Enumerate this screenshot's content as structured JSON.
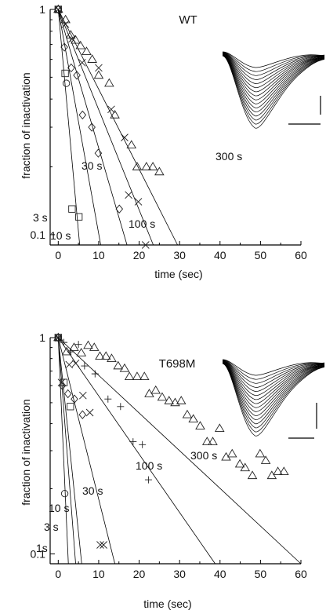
{
  "chart_data": [
    {
      "type": "scatter",
      "title": "WT",
      "xlabel": "time (sec)",
      "ylabel": "fraction of inactivation",
      "xlim": [
        -2,
        60
      ],
      "ylim": [
        0.09,
        1
      ],
      "y_scale": "log",
      "x_ticks": [
        "0",
        "10",
        "20",
        "30",
        "40",
        "50",
        "60"
      ],
      "y_ticks": [
        "1",
        "0.1"
      ],
      "inset": "current traces with scale bars",
      "series": [
        {
          "name": "3 s",
          "marker": "square",
          "x": [
            0,
            1.7,
            3.4,
            5.1
          ],
          "y": [
            1,
            0.52,
            0.13,
            0.12
          ],
          "fit_to_x": 5.3
        },
        {
          "name": "10 s",
          "marker": "circle",
          "x": [
            0,
            2.0
          ],
          "y": [
            1,
            0.47
          ],
          "fit_to_x": 10.5
        },
        {
          "name": "30 s",
          "marker": "diamond",
          "x": [
            0,
            1.5,
            3.2,
            4.6,
            6.0,
            8.3,
            9.9,
            15.1
          ],
          "y": [
            1,
            0.68,
            0.55,
            0.51,
            0.34,
            0.3,
            0.23,
            0.13
          ],
          "fit_to_x": 17.0
        },
        {
          "name": "100 s",
          "marker": "x",
          "x": [
            0,
            1.8,
            3.4,
            5.9,
            10.0,
            13.1,
            16.4,
            17.4,
            19.8,
            21.6
          ],
          "y": [
            1,
            0.86,
            0.74,
            0.58,
            0.55,
            0.36,
            0.27,
            0.15,
            0.14,
            0.09
          ],
          "fit_to_x": 23.5
        },
        {
          "name": "300 s",
          "marker": "triangle",
          "x": [
            0,
            1.8,
            3.1,
            4.3,
            5.5,
            7.0,
            8.4,
            10.0,
            12.6,
            14.0,
            18.1,
            19.5,
            21.8,
            23.4,
            25.0
          ],
          "y": [
            1,
            0.9,
            0.77,
            0.73,
            0.69,
            0.65,
            0.6,
            0.51,
            0.47,
            0.34,
            0.25,
            0.2,
            0.2,
            0.2,
            0.19
          ],
          "fit_to_x": 29.5
        }
      ],
      "annotations": [
        "3 s",
        "10 s",
        "30 s",
        "100 s",
        "300 s"
      ]
    },
    {
      "type": "scatter",
      "title": "T698M",
      "xlabel": "time (sec)",
      "ylabel": "fraction of inactivation",
      "xlim": [
        -2,
        60
      ],
      "ylim": [
        0.09,
        1
      ],
      "y_scale": "log",
      "x_ticks": [
        "0",
        "10",
        "20",
        "30",
        "40",
        "50",
        "60"
      ],
      "y_ticks": [
        "1",
        "0.1"
      ],
      "inset": "current traces with scale bars",
      "series": [
        {
          "name": "1s",
          "marker": "none",
          "x": [],
          "y": [],
          "fit_to_x": 2.5
        },
        {
          "name": "3 s",
          "marker": "circle",
          "x": [
            0,
            1.6
          ],
          "y": [
            1,
            0.19
          ],
          "fit_to_x": 4.3
        },
        {
          "name": "10 s",
          "marker": "square",
          "x": [
            0,
            1.4,
            3.0
          ],
          "y": [
            1,
            0.62,
            0.48
          ],
          "fit_to_x": 5.8
        },
        {
          "name": "30 s",
          "marker": "diamond",
          "x": [
            0,
            1.0,
            2.4,
            4.0,
            6.0
          ],
          "y": [
            1,
            0.6,
            0.55,
            0.52,
            0.44
          ],
          "fit_to_x": 14.0
        },
        {
          "name": "100 s",
          "marker": "x",
          "x": [
            0,
            0.8,
            2.7,
            4.3,
            6.1,
            7.8,
            10.4,
            11.2
          ],
          "y": [
            1,
            0.62,
            0.75,
            0.76,
            0.54,
            0.45,
            0.11,
            0.11
          ],
          "fit_to_x": 38.8
        },
        {
          "name": "300 s",
          "marker": "plus",
          "x": [
            0,
            1.4,
            3.1,
            5.0,
            6.5,
            9.1,
            12.3,
            15.4,
            18.5,
            20.8,
            22.3
          ],
          "y": [
            1,
            0.95,
            0.86,
            0.93,
            0.74,
            0.68,
            0.52,
            0.48,
            0.33,
            0.32,
            0.22
          ],
          "fit_to_x": 0
        },
        {
          "name": "300 s",
          "marker": "triangle",
          "x": [
            0,
            2.1,
            3.9,
            5.7,
            7.4,
            8.9,
            10.3,
            11.8,
            13.2,
            14.8,
            16.4,
            17.6,
            19.5,
            21.3,
            22.5,
            24.1,
            25.7,
            27.4,
            28.9,
            30.4,
            31.9,
            33.4,
            35.1,
            36.8,
            38.2,
            39.9,
            41.5,
            43.0,
            44.9,
            46.2,
            48.0,
            49.9,
            51.3,
            52.8,
            54.3,
            55.8
          ],
          "y": [
            1,
            0.86,
            0.9,
            0.85,
            0.92,
            0.9,
            0.82,
            0.82,
            0.8,
            0.74,
            0.72,
            0.66,
            0.66,
            0.66,
            0.55,
            0.57,
            0.53,
            0.51,
            0.5,
            0.51,
            0.44,
            0.42,
            0.39,
            0.33,
            0.33,
            0.38,
            0.28,
            0.29,
            0.26,
            0.25,
            0.23,
            0.29,
            0.27,
            0.23,
            0.24,
            0.24
          ],
          "fit_to_x": 60
        }
      ],
      "annotations": [
        "1s",
        "3 s",
        "10 s",
        "30 s",
        "100 s",
        "300 s"
      ]
    }
  ]
}
